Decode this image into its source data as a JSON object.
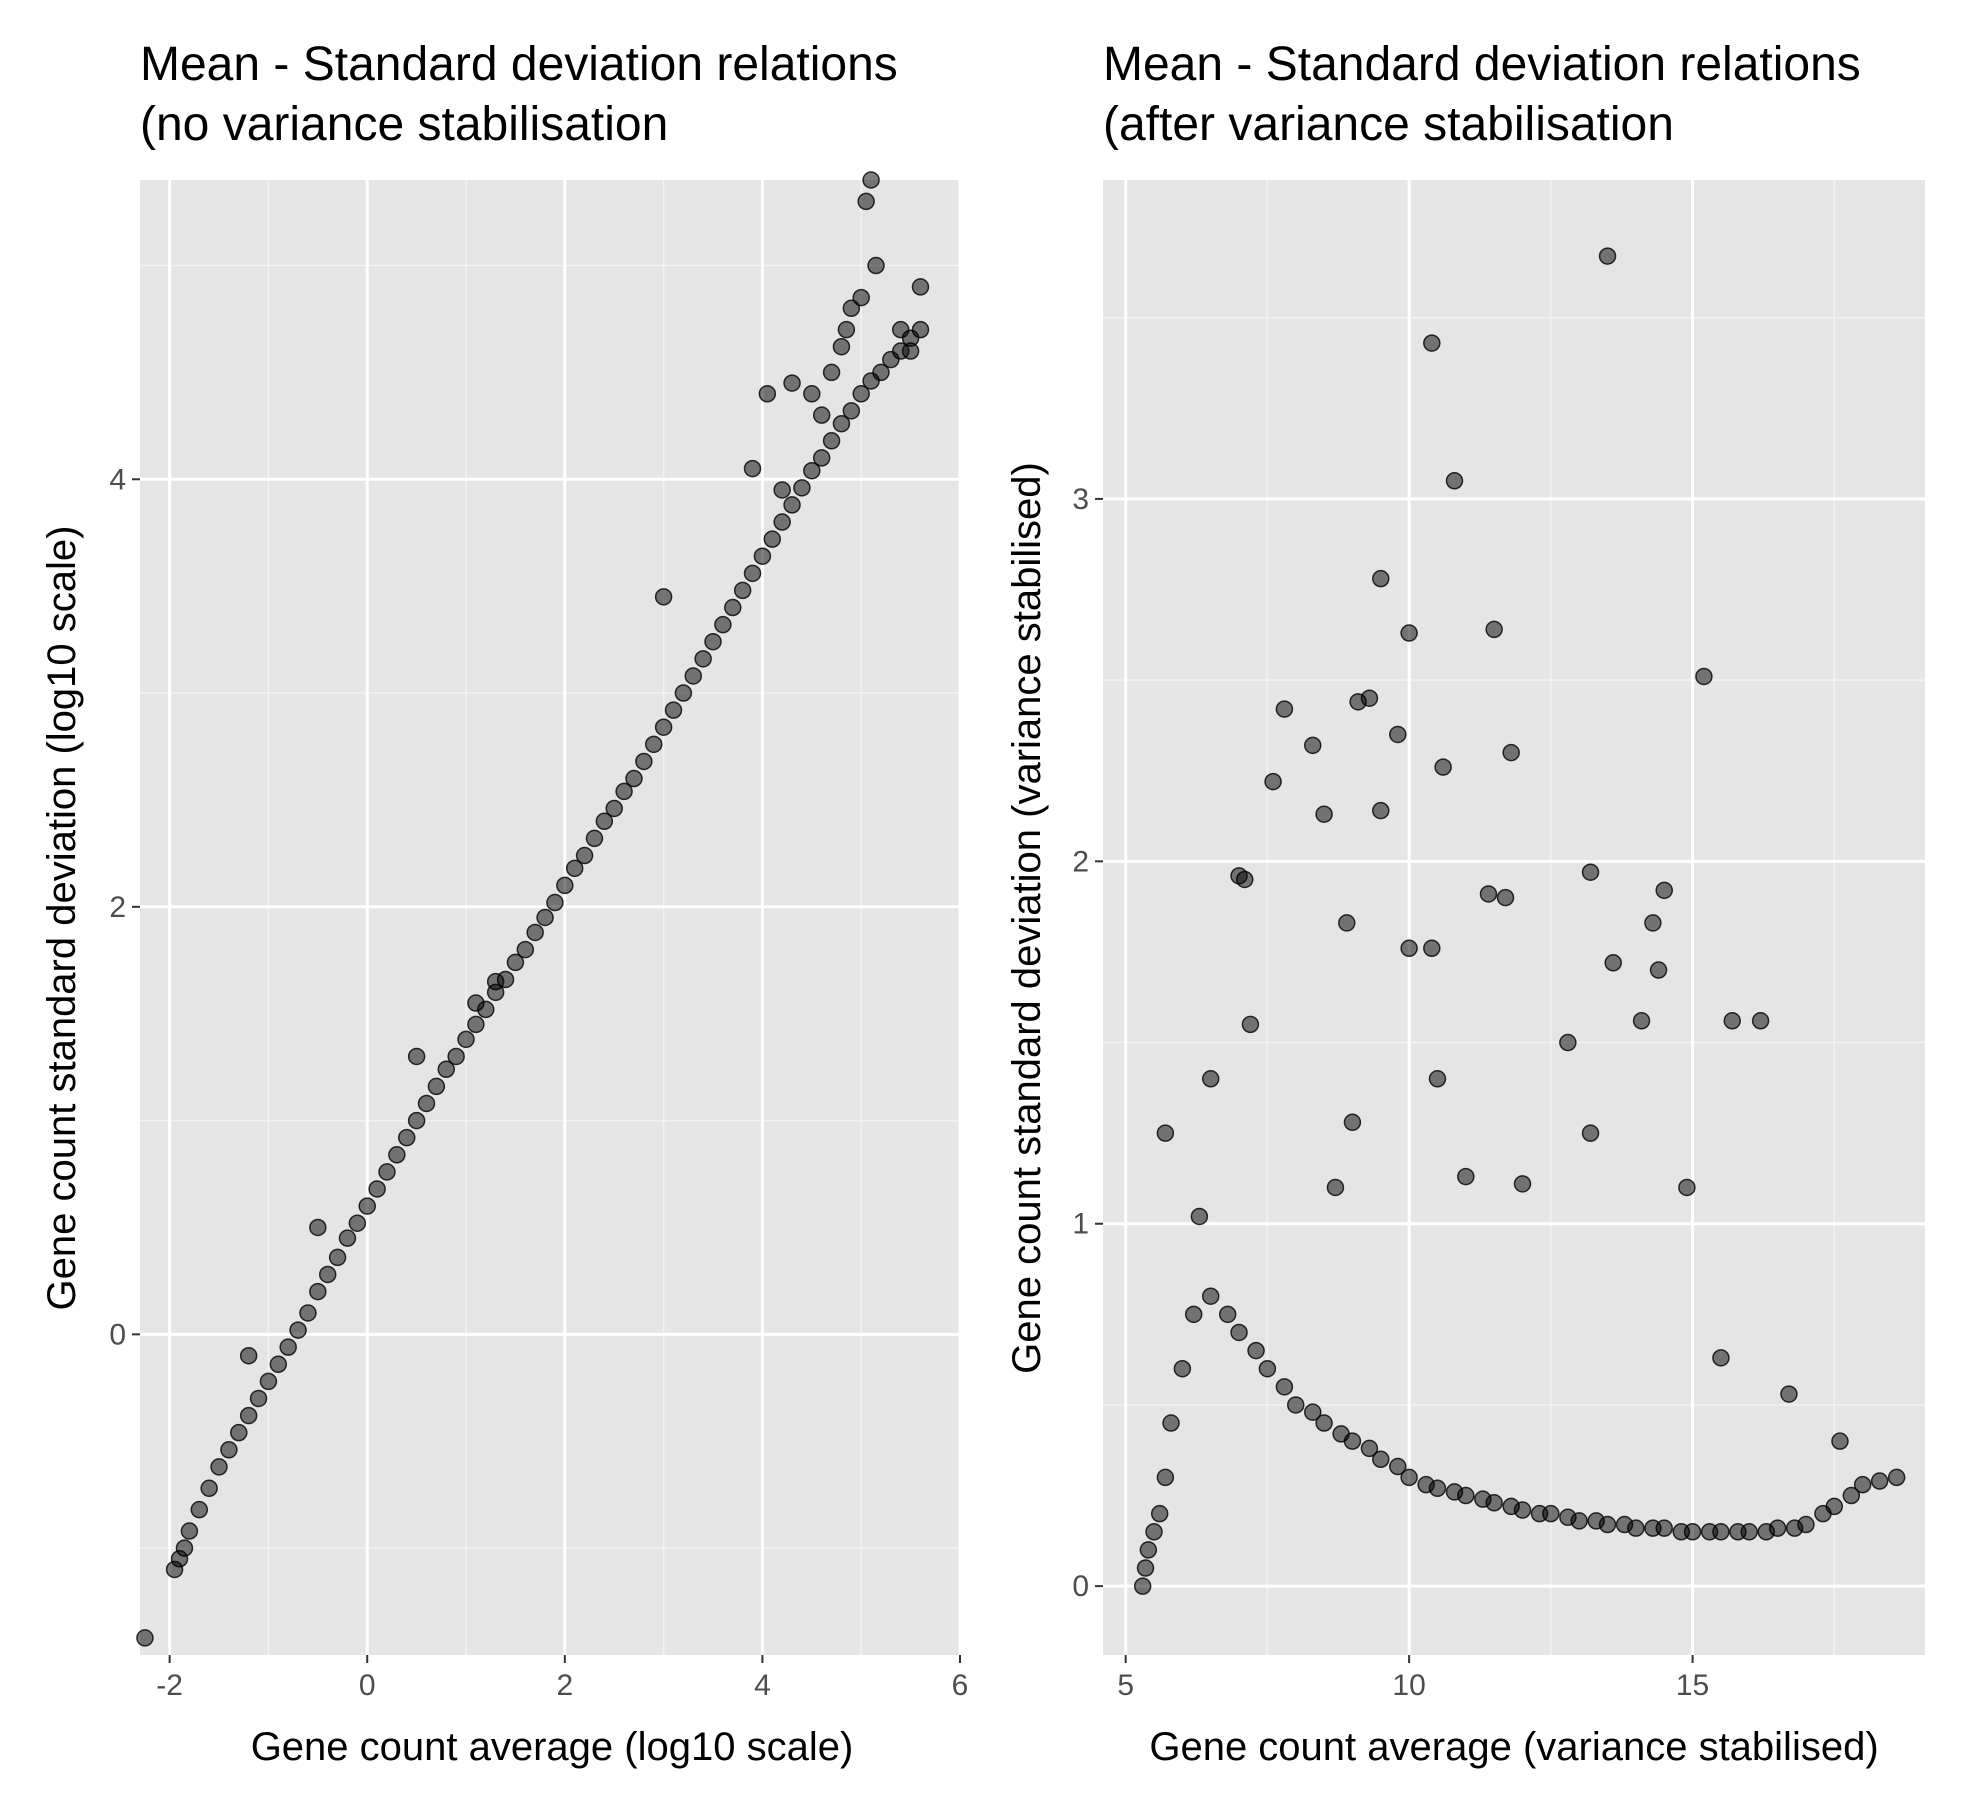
{
  "chart_data": [
    {
      "type": "scatter",
      "title": "Mean - Standard deviation relations",
      "subtitle": "(no variance stabilisation",
      "xlabel": "Gene count average (log10 scale)",
      "ylabel": "Gene count standard deviation (log10 scale)",
      "xlim": [
        -2.3,
        6
      ],
      "ylim": [
        -1.5,
        5.4
      ],
      "xticks": [
        -2,
        0,
        2,
        4,
        6
      ],
      "xtick_labels": [
        "-2",
        "0",
        "2",
        "4",
        "6"
      ],
      "yticks": [
        0,
        2,
        4
      ],
      "ytick_labels": [
        "0",
        "2",
        "4"
      ],
      "grid": true,
      "point_color": "#000000",
      "point_alpha": 0.5,
      "series": [
        {
          "x": [
            -2.25,
            -1.95,
            -1.9,
            -1.85,
            -1.8,
            -1.7,
            -1.6,
            -1.5,
            -1.4,
            -1.3,
            -1.2,
            -1.1,
            -1.0,
            -0.9,
            -0.8,
            -0.7,
            -0.6,
            -0.5,
            -0.4,
            -0.3,
            -0.2,
            -0.1,
            0.0,
            0.1,
            0.2,
            0.3,
            0.4,
            0.5,
            0.6,
            0.7,
            0.8,
            0.9,
            1.0,
            1.1,
            1.2,
            1.3,
            1.4,
            1.5,
            1.6,
            1.7,
            1.8,
            1.9,
            2.0,
            2.1,
            2.2,
            2.3,
            2.4,
            2.5,
            2.6,
            2.7,
            2.8,
            2.9,
            3.0,
            3.1,
            3.2,
            3.3,
            3.4,
            3.5,
            3.6,
            3.7,
            3.8,
            3.9,
            4.0,
            4.1,
            4.2,
            4.3,
            4.4,
            4.5,
            4.6,
            4.7,
            4.8,
            4.9,
            5.0,
            5.1,
            5.2,
            5.3,
            5.4,
            5.5,
            5.6,
            4.05,
            4.3,
            4.5,
            4.6,
            4.7,
            4.8,
            4.85,
            4.9,
            5.0,
            5.05,
            5.15,
            5.1,
            5.4,
            5.5,
            5.6,
            4.2,
            3.9,
            3.0,
            1.3,
            1.1,
            0.5,
            -0.5,
            -1.2
          ],
          "y": [
            -1.42,
            -1.1,
            -1.05,
            -1.0,
            -0.92,
            -0.82,
            -0.72,
            -0.62,
            -0.54,
            -0.46,
            -0.38,
            -0.3,
            -0.22,
            -0.14,
            -0.06,
            0.02,
            0.1,
            0.2,
            0.28,
            0.36,
            0.45,
            0.52,
            0.6,
            0.68,
            0.76,
            0.84,
            0.92,
            1.0,
            1.08,
            1.16,
            1.24,
            1.3,
            1.38,
            1.45,
            1.52,
            1.6,
            1.66,
            1.74,
            1.8,
            1.88,
            1.95,
            2.02,
            2.1,
            2.18,
            2.24,
            2.32,
            2.4,
            2.46,
            2.54,
            2.6,
            2.68,
            2.76,
            2.84,
            2.92,
            3.0,
            3.08,
            3.16,
            3.24,
            3.32,
            3.4,
            3.48,
            3.56,
            3.64,
            3.72,
            3.8,
            3.88,
            3.96,
            4.04,
            4.1,
            4.18,
            4.26,
            4.32,
            4.4,
            4.46,
            4.5,
            4.56,
            4.6,
            4.66,
            4.7,
            4.4,
            4.45,
            4.4,
            4.3,
            4.5,
            4.62,
            4.7,
            4.8,
            4.85,
            5.3,
            5.0,
            5.4,
            4.7,
            4.6,
            4.9,
            3.95,
            4.05,
            3.45,
            1.65,
            1.55,
            1.3,
            0.5,
            -0.1
          ]
        }
      ]
    },
    {
      "type": "scatter",
      "title": "Mean - Standard deviation relations",
      "subtitle": "(after variance stabilisation",
      "xlabel": "Gene count average (variance stabilised)",
      "ylabel": "Gene count standard deviation (variance stabilised)",
      "xlim": [
        4.6,
        19.1
      ],
      "ylim": [
        -0.19,
        3.88
      ],
      "xticks": [
        5,
        10,
        15
      ],
      "xtick_labels": [
        "5",
        "10",
        "15"
      ],
      "yticks": [
        0,
        1,
        2,
        3
      ],
      "ytick_labels": [
        "0",
        "1",
        "2",
        "3"
      ],
      "grid": true,
      "point_color": "#000000",
      "point_alpha": 0.5,
      "series": [
        {
          "x": [
            5.3,
            5.35,
            5.4,
            5.5,
            5.6,
            5.7,
            5.8,
            6.0,
            6.2,
            6.5,
            6.8,
            7.0,
            7.3,
            7.5,
            7.8,
            8.0,
            8.3,
            8.5,
            8.8,
            9.0,
            9.3,
            9.5,
            9.8,
            10.0,
            10.3,
            10.5,
            10.8,
            11.0,
            11.3,
            11.5,
            11.8,
            12.0,
            12.3,
            12.5,
            12.8,
            13.0,
            13.3,
            13.5,
            13.8,
            14.0,
            14.3,
            14.5,
            14.8,
            15.0,
            15.3,
            15.5,
            15.8,
            16.0,
            16.3,
            16.5,
            16.8,
            17.0,
            17.3,
            17.5,
            17.8,
            18.0,
            18.3,
            18.6,
            13.5,
            10.4,
            10.8,
            9.5,
            10.0,
            11.5,
            15.2,
            9.3,
            9.1,
            7.8,
            8.3,
            10.6,
            11.8,
            7.6,
            8.5,
            9.5,
            9.8,
            13.2,
            14.5,
            11.4,
            11.7,
            7.0,
            8.9,
            14.3,
            10.4,
            7.1,
            10.0,
            12.8,
            14.4,
            15.7,
            14.1,
            16.2,
            13.6,
            13.2,
            14.9,
            12.0,
            11.0,
            8.7,
            6.3,
            5.7,
            6.5,
            7.2,
            9.0,
            10.5,
            15.5,
            16.7,
            17.6
          ],
          "y": [
            0.0,
            0.05,
            0.1,
            0.15,
            0.2,
            0.3,
            0.45,
            0.6,
            0.75,
            0.8,
            0.75,
            0.7,
            0.65,
            0.6,
            0.55,
            0.5,
            0.48,
            0.45,
            0.42,
            0.4,
            0.38,
            0.35,
            0.33,
            0.3,
            0.28,
            0.27,
            0.26,
            0.25,
            0.24,
            0.23,
            0.22,
            0.21,
            0.2,
            0.2,
            0.19,
            0.18,
            0.18,
            0.17,
            0.17,
            0.16,
            0.16,
            0.16,
            0.15,
            0.15,
            0.15,
            0.15,
            0.15,
            0.15,
            0.15,
            0.16,
            0.16,
            0.17,
            0.2,
            0.22,
            0.25,
            0.28,
            0.29,
            0.3,
            3.67,
            3.43,
            3.05,
            2.78,
            2.63,
            2.64,
            2.51,
            2.45,
            2.44,
            2.42,
            2.32,
            2.26,
            2.3,
            2.22,
            2.13,
            2.14,
            2.35,
            1.97,
            1.92,
            1.91,
            1.9,
            1.96,
            1.83,
            1.83,
            1.76,
            1.95,
            1.76,
            1.5,
            1.7,
            1.56,
            1.56,
            1.56,
            1.72,
            1.25,
            1.1,
            1.11,
            1.13,
            1.1,
            1.02,
            1.25,
            1.4,
            1.55,
            1.28,
            1.4,
            0.63,
            0.53,
            0.4
          ]
        }
      ]
    }
  ]
}
